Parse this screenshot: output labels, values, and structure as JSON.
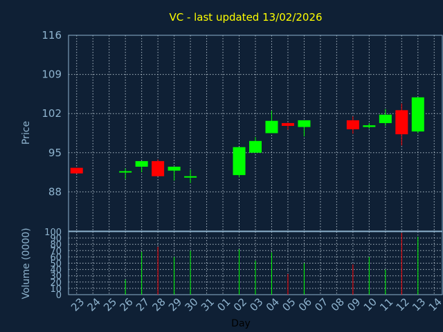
{
  "chart_data": {
    "type": "candlestick",
    "title": "VC - last updated 13/02/2026",
    "xlabel": "Day",
    "price_axis": {
      "label": "Price",
      "ylim": [
        81,
        116
      ],
      "ticks": [
        116,
        109,
        102,
        95,
        88
      ]
    },
    "volume_axis": {
      "label": "Volume (0000)",
      "ylim": [
        0,
        100
      ],
      "ticks": [
        100,
        90,
        80,
        70,
        60,
        50,
        40,
        30,
        20,
        10,
        0
      ]
    },
    "categories": [
      "23",
      "24",
      "25",
      "26",
      "27",
      "28",
      "29",
      "30",
      "31",
      "01",
      "02",
      "03",
      "04",
      "05",
      "06",
      "07",
      "08",
      "09",
      "10",
      "11",
      "12",
      "13",
      "14"
    ],
    "up_color": "#00ff00",
    "down_color": "#ff0000",
    "candles": [
      {
        "day": "23",
        "open": 92.3,
        "close": 91.3,
        "high": 92.3,
        "low": 91.3,
        "volume": 0
      },
      {
        "day": "26",
        "open": 91.5,
        "close": 91.7,
        "high": 92.2,
        "low": 90.3,
        "volume": 24
      },
      {
        "day": "27",
        "open": 92.5,
        "close": 93.5,
        "high": 93.5,
        "low": 91.5,
        "volume": 68
      },
      {
        "day": "28",
        "open": 93.5,
        "close": 90.8,
        "high": 93.8,
        "low": 90.8,
        "volume": 76
      },
      {
        "day": "29",
        "open": 91.8,
        "close": 92.5,
        "high": 92.5,
        "low": 90.0,
        "volume": 60
      },
      {
        "day": "30",
        "open": 90.6,
        "close": 90.8,
        "high": 92.0,
        "low": 89.6,
        "volume": 70
      },
      {
        "day": "02",
        "open": 91.0,
        "close": 96.0,
        "high": 96.0,
        "low": 90.6,
        "volume": 72
      },
      {
        "day": "03",
        "open": 95.0,
        "close": 97.1,
        "high": 97.8,
        "low": 95.0,
        "volume": 54
      },
      {
        "day": "04",
        "open": 98.5,
        "close": 100.7,
        "high": 102.5,
        "low": 98.5,
        "volume": 67
      },
      {
        "day": "05",
        "open": 100.3,
        "close": 99.8,
        "high": 100.4,
        "low": 99.1,
        "volume": 33
      },
      {
        "day": "06",
        "open": 99.6,
        "close": 100.8,
        "high": 100.8,
        "low": 97.9,
        "volume": 50
      },
      {
        "day": "09",
        "open": 100.8,
        "close": 99.2,
        "high": 101.5,
        "low": 98.4,
        "volume": 48
      },
      {
        "day": "10",
        "open": 99.6,
        "close": 99.9,
        "high": 100.3,
        "low": 99.3,
        "volume": 60
      },
      {
        "day": "11",
        "open": 100.3,
        "close": 101.8,
        "high": 102.8,
        "low": 99.8,
        "volume": 40
      },
      {
        "day": "12",
        "open": 102.6,
        "close": 98.3,
        "high": 103.8,
        "low": 96.3,
        "volume": 98
      },
      {
        "day": "13",
        "open": 98.8,
        "close": 104.9,
        "high": 104.9,
        "low": 98.5,
        "volume": 92
      }
    ],
    "grid": true
  }
}
